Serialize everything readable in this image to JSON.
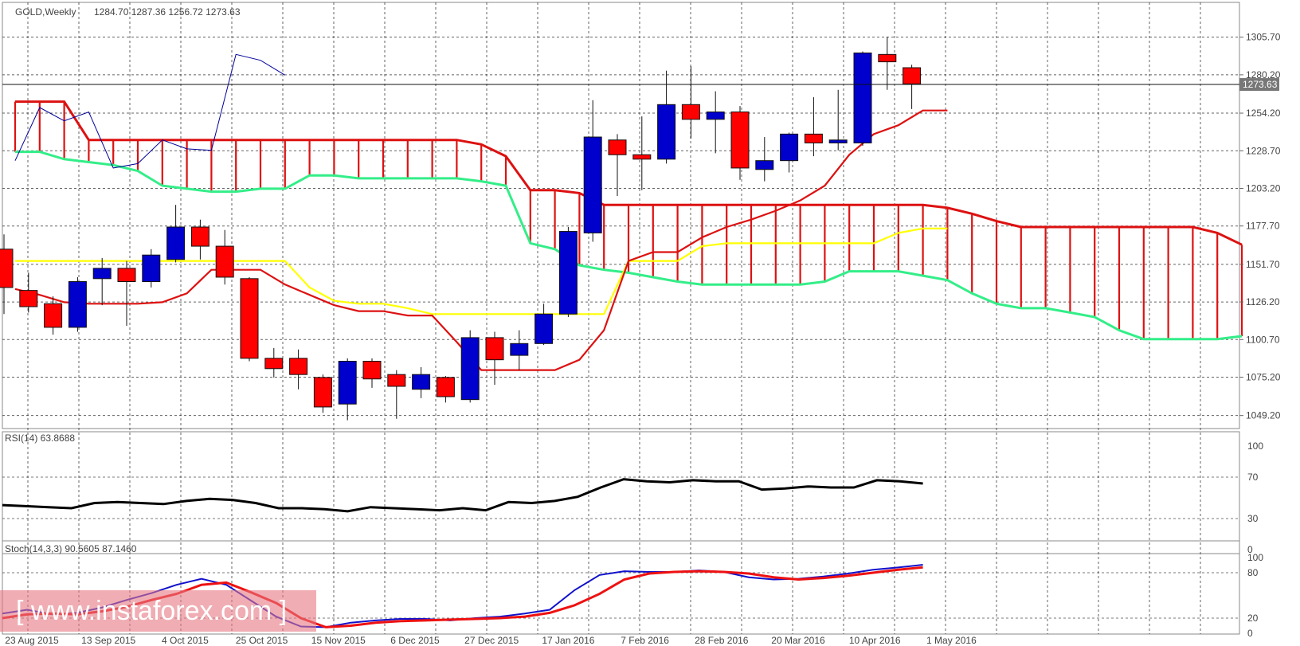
{
  "header": {
    "symbol": "GOLD,Weekly",
    "ohlc": "1284.70 1287.36 1256.72 1273.63"
  },
  "watermark": "[ www.instaforex.com ]",
  "colors": {
    "bull": "#0000cc",
    "bear": "#ff0000",
    "tenkan": "#dd1111",
    "kijun": "#ffff00",
    "spanA": "#dd1111",
    "spanB": "#33ee88",
    "chikou": "#000099",
    "rsi": "#000000",
    "stoch_main": "#1111cc",
    "stoch_signal": "#ee1111",
    "grid": "#222222"
  },
  "chart_data": [
    {
      "type": "candlestick",
      "title": "GOLD,Weekly",
      "x_tick_labels": [
        "23 Aug 2015",
        "13 Sep 2015",
        "4 Oct 2015",
        "25 Oct 2015",
        "15 Nov 2015",
        "6 Dec 2015",
        "27 Dec 2015",
        "17 Jan 2016",
        "7 Feb 2016",
        "28 Feb 2016",
        "20 Mar 2016",
        "10 Apr 2016",
        "1 May 2016"
      ],
      "y_tick_labels": [
        "1305.70",
        "1280.20",
        "1254.20",
        "1228.70",
        "1203.20",
        "1177.70",
        "1151.70",
        "1126.20",
        "1100.70",
        "1075.20",
        "1049.20"
      ],
      "ylim": [
        1042,
        1312
      ],
      "current_price": "1273.63",
      "grid": true,
      "candles": [
        {
          "o": 1162,
          "h": 1172,
          "l": 1118,
          "c": 1136
        },
        {
          "o": 1134,
          "h": 1146,
          "l": 1119,
          "c": 1123
        },
        {
          "o": 1125,
          "h": 1130,
          "l": 1104,
          "c": 1109
        },
        {
          "o": 1109,
          "h": 1143,
          "l": 1106,
          "c": 1140
        },
        {
          "o": 1142,
          "h": 1156,
          "l": 1124,
          "c": 1149
        },
        {
          "o": 1149,
          "h": 1154,
          "l": 1110,
          "c": 1140
        },
        {
          "o": 1140,
          "h": 1162,
          "l": 1136,
          "c": 1158
        },
        {
          "o": 1155,
          "h": 1192,
          "l": 1153,
          "c": 1177
        },
        {
          "o": 1177,
          "h": 1182,
          "l": 1155,
          "c": 1164
        },
        {
          "o": 1164,
          "h": 1175,
          "l": 1138,
          "c": 1143
        },
        {
          "o": 1142,
          "h": 1143,
          "l": 1086,
          "c": 1088
        },
        {
          "o": 1088,
          "h": 1095,
          "l": 1075,
          "c": 1081
        },
        {
          "o": 1088,
          "h": 1094,
          "l": 1067,
          "c": 1077
        },
        {
          "o": 1075,
          "h": 1077,
          "l": 1051,
          "c": 1055
        },
        {
          "o": 1057,
          "h": 1088,
          "l": 1046,
          "c": 1086
        },
        {
          "o": 1086,
          "h": 1088,
          "l": 1068,
          "c": 1074
        },
        {
          "o": 1077,
          "h": 1080,
          "l": 1047,
          "c": 1069
        },
        {
          "o": 1067,
          "h": 1082,
          "l": 1061,
          "c": 1077
        },
        {
          "o": 1075,
          "h": 1076,
          "l": 1058,
          "c": 1062
        },
        {
          "o": 1060,
          "h": 1107,
          "l": 1058,
          "c": 1102
        },
        {
          "o": 1102,
          "h": 1106,
          "l": 1070,
          "c": 1087
        },
        {
          "o": 1090,
          "h": 1107,
          "l": 1080,
          "c": 1098
        },
        {
          "o": 1098,
          "h": 1125,
          "l": 1097,
          "c": 1118
        },
        {
          "o": 1118,
          "h": 1177,
          "l": 1116,
          "c": 1174
        },
        {
          "o": 1173,
          "h": 1263,
          "l": 1167,
          "c": 1238
        },
        {
          "o": 1236,
          "h": 1240,
          "l": 1198,
          "c": 1226
        },
        {
          "o": 1226,
          "h": 1252,
          "l": 1202,
          "c": 1223
        },
        {
          "o": 1223,
          "h": 1283,
          "l": 1220,
          "c": 1260
        },
        {
          "o": 1260,
          "h": 1286,
          "l": 1237,
          "c": 1250
        },
        {
          "o": 1250,
          "h": 1269,
          "l": 1227,
          "c": 1255
        },
        {
          "o": 1255,
          "h": 1259,
          "l": 1209,
          "c": 1217
        },
        {
          "o": 1216,
          "h": 1238,
          "l": 1208,
          "c": 1222
        },
        {
          "o": 1222,
          "h": 1241,
          "l": 1214,
          "c": 1240
        },
        {
          "o": 1240,
          "h": 1265,
          "l": 1225,
          "c": 1234
        },
        {
          "o": 1234,
          "h": 1270,
          "l": 1229,
          "c": 1236
        },
        {
          "o": 1234,
          "h": 1296,
          "l": 1232,
          "c": 1295
        },
        {
          "o": 1294,
          "h": 1306,
          "l": 1270,
          "c": 1289
        },
        {
          "o": 1285,
          "h": 1287,
          "l": 1257,
          "c": 1274
        }
      ],
      "tenkan_sen": [
        1135,
        1131,
        1126,
        1125,
        1125,
        1125,
        1126,
        1132,
        1148,
        1148,
        1148,
        1138,
        1131,
        1124,
        1120,
        1120,
        1117,
        1117,
        1099,
        1080,
        1080,
        1080,
        1080,
        1087,
        1107,
        1154,
        1160,
        1160,
        1170,
        1177,
        1182,
        1188,
        1195,
        1205,
        1226,
        1240,
        1246,
        1256,
        1256
      ],
      "kijun_sen": [
        1154,
        1154,
        1154,
        1154,
        1154,
        1154,
        1154,
        1154,
        1154,
        1154,
        1154,
        1154,
        1136,
        1127,
        1125,
        1125,
        1122,
        1118,
        1118,
        1118,
        1118,
        1118,
        1118,
        1118,
        1118,
        1154,
        1154,
        1154,
        1164,
        1166,
        1166,
        1166,
        1166,
        1166,
        1166,
        1166,
        1173,
        1176,
        1176
      ],
      "senkou_span_a": [
        1262,
        1262,
        1262,
        1236,
        1236,
        1236,
        1236,
        1236,
        1236,
        1236,
        1236,
        1236,
        1236,
        1236,
        1236,
        1236,
        1236,
        1236,
        1236,
        1233,
        1225,
        1202,
        1202,
        1200,
        1192,
        1192,
        1192,
        1192,
        1192,
        1192,
        1192,
        1192,
        1192,
        1192,
        1192,
        1192,
        1192,
        1192,
        1190,
        1186,
        1181,
        1177,
        1177,
        1177,
        1177,
        1177,
        1177,
        1177,
        1177,
        1173,
        1165
      ],
      "senkou_span_b": [
        1228,
        1228,
        1223,
        1221,
        1219,
        1215,
        1205,
        1203,
        1201,
        1201,
        1203,
        1203,
        1212,
        1212,
        1210,
        1210,
        1210,
        1210,
        1210,
        1208,
        1205,
        1166,
        1162,
        1151,
        1148,
        1146,
        1143,
        1140,
        1138,
        1138,
        1138,
        1138,
        1138,
        1140,
        1147,
        1147,
        1147,
        1144,
        1141,
        1132,
        1125,
        1122,
        1122,
        1119,
        1116,
        1107,
        1101,
        1101,
        1101,
        1101,
        1103
      ],
      "chikou_span": [
        1222,
        1258,
        1249,
        1255,
        1217,
        1220,
        1236,
        1230,
        1229,
        1294,
        1290,
        1280
      ]
    },
    {
      "type": "line",
      "title": "RSI(14) 63.8688",
      "y_tick_labels": [
        "100",
        "70",
        "30",
        "0"
      ],
      "ylim": [
        0,
        100
      ],
      "series": [
        {
          "values": [
            43,
            42,
            41,
            40,
            45,
            46,
            45,
            44,
            47,
            49,
            48,
            45,
            40,
            40,
            39,
            37,
            41,
            40,
            39,
            38,
            40,
            38,
            46,
            45,
            47,
            51,
            60,
            68,
            66,
            65,
            67,
            66,
            66,
            58,
            59,
            61,
            60,
            60,
            67,
            66,
            63.87
          ]
        }
      ]
    },
    {
      "type": "line",
      "title": "Stoch(14,3,3) 90.5605 87.1460",
      "y_tick_labels": [
        "100",
        "80",
        "20",
        "0"
      ],
      "ylim": [
        0,
        100
      ],
      "series": [
        {
          "values": [
            26,
            31,
            25,
            27,
            34,
            44,
            53,
            64,
            72,
            64,
            43,
            22,
            9,
            8,
            14,
            17,
            19,
            19,
            17,
            20,
            22,
            26,
            31,
            57,
            77,
            82,
            81,
            81,
            83,
            81,
            74,
            71,
            72,
            75,
            79,
            84,
            87,
            90.56
          ]
        },
        {
          "values": [
            20,
            25,
            26,
            25,
            29,
            35,
            44,
            52,
            64,
            67,
            54,
            40,
            20,
            8,
            10,
            14,
            16,
            17,
            18,
            19,
            20,
            22,
            27,
            37,
            52,
            71,
            79,
            81,
            82,
            81,
            79,
            74,
            71,
            73,
            76,
            80,
            84,
            87.15
          ]
        }
      ]
    }
  ]
}
